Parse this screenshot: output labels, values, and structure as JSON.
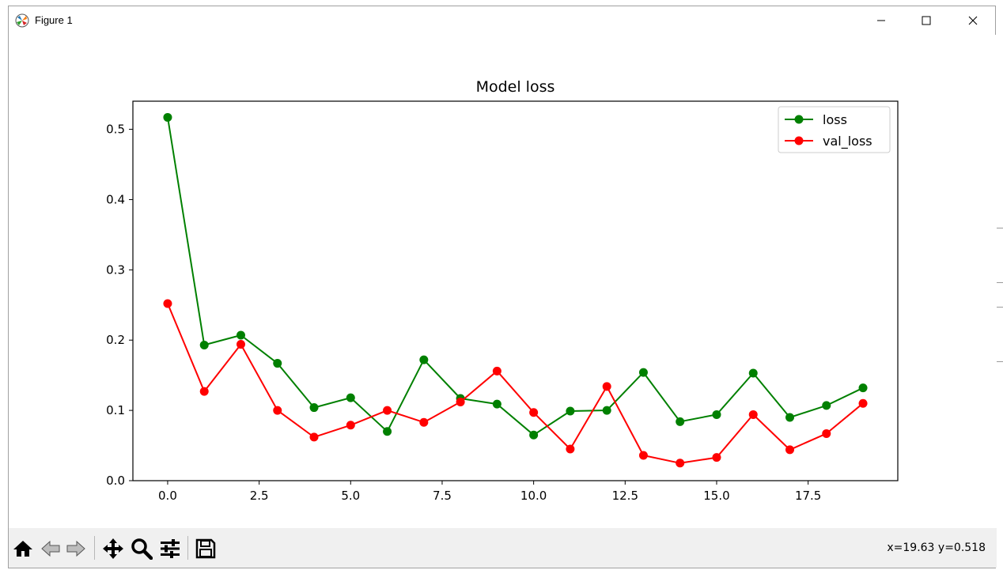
{
  "window": {
    "title": "Figure 1",
    "icons": {
      "app": "matplotlib-icon",
      "minimize": "minimize-icon",
      "maximize": "maximize-icon",
      "close": "close-icon"
    }
  },
  "toolbar": {
    "tools": [
      "home-icon",
      "back-icon",
      "forward-icon",
      "pan-icon",
      "zoom-icon",
      "configure-subplots-icon",
      "save-icon"
    ],
    "coords": "x=19.63 y=0.518"
  },
  "chart_data": {
    "type": "line",
    "title": "Model loss",
    "xlabel": "",
    "ylabel": "",
    "xlim": [
      -0.95,
      19.95
    ],
    "ylim": [
      0.0,
      0.54
    ],
    "xticks": [
      0.0,
      2.5,
      5.0,
      7.5,
      10.0,
      12.5,
      15.0,
      17.5
    ],
    "xtick_labels": [
      "0.0",
      "2.5",
      "5.0",
      "7.5",
      "10.0",
      "12.5",
      "15.0",
      "17.5"
    ],
    "yticks": [
      0.0,
      0.1,
      0.2,
      0.3,
      0.4,
      0.5
    ],
    "ytick_labels": [
      "0.0",
      "0.1",
      "0.2",
      "0.3",
      "0.4",
      "0.5"
    ],
    "grid": false,
    "legend_position": "top-right",
    "x": [
      0,
      1,
      2,
      3,
      4,
      5,
      6,
      7,
      8,
      9,
      10,
      11,
      12,
      13,
      14,
      15,
      16,
      17,
      18,
      19
    ],
    "series": [
      {
        "name": "loss",
        "color": "#008000",
        "values": [
          0.517,
          0.193,
          0.207,
          0.167,
          0.104,
          0.118,
          0.07,
          0.172,
          0.117,
          0.109,
          0.065,
          0.099,
          0.1,
          0.154,
          0.084,
          0.094,
          0.153,
          0.09,
          0.107,
          0.132
        ]
      },
      {
        "name": "val_loss",
        "color": "#ff0000",
        "values": [
          0.252,
          0.127,
          0.194,
          0.1,
          0.062,
          0.079,
          0.1,
          0.083,
          0.112,
          0.156,
          0.097,
          0.045,
          0.134,
          0.036,
          0.025,
          0.033,
          0.094,
          0.044,
          0.067,
          0.11
        ]
      }
    ]
  }
}
